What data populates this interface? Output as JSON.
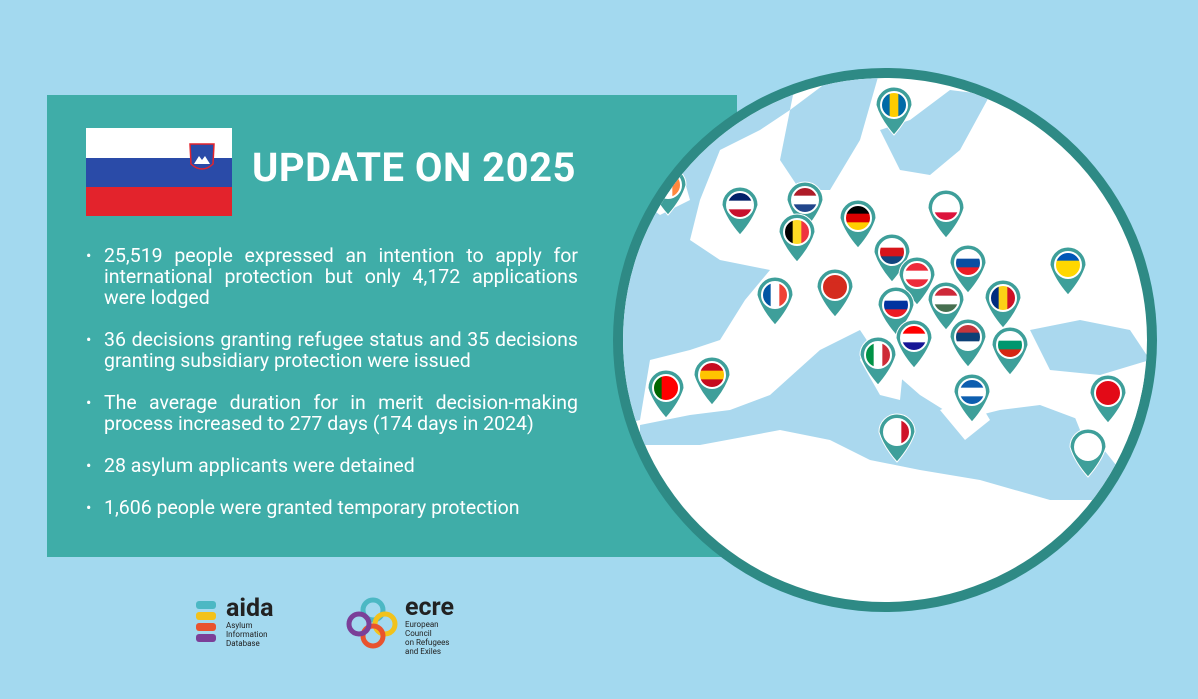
{
  "header": {
    "title": "UPDATE ON 2025"
  },
  "bullets": [
    "25,519 people expressed an intention to apply for international protection but only 4,172 applications were lodged",
    "36 decisions granting refugee status and 35 decisions granting subsidiary protection were issued",
    "The average duration for in merit decision-making process increased to 277 days (174 days in 2024)",
    "28 asylum applicants were detained",
    "1,606 people were granted temporary protection"
  ],
  "logos": {
    "aida": {
      "name": "aida",
      "subtitle": [
        "Asylum Information",
        "Database"
      ]
    },
    "ecre": {
      "name": "ecre",
      "subtitle": [
        "European Council",
        "on Refugees and Exiles"
      ]
    }
  }
}
